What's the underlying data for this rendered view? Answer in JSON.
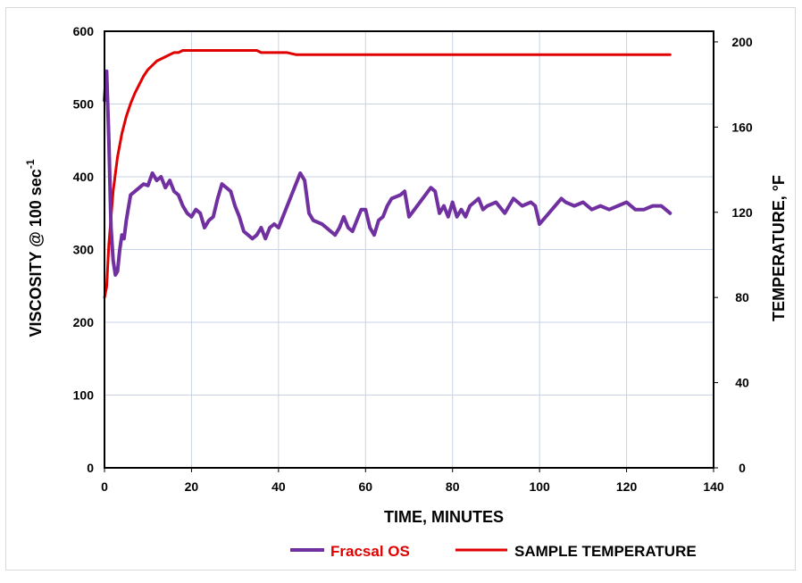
{
  "chart_data": {
    "type": "line",
    "xlabel": "TIME, MINUTES",
    "ylabel_left_main": "VISCOSITY @ 100 sec",
    "ylabel_left_sup": "-1",
    "ylabel_right": "TEMPERATURE,  °F",
    "xlim": [
      0,
      140
    ],
    "ylim_left": [
      0,
      600
    ],
    "ylim_right": [
      0,
      205
    ],
    "x_ticks": [
      "0",
      "20",
      "40",
      "60",
      "80",
      "100",
      "120",
      "140"
    ],
    "y_left_ticks": [
      "0",
      "100",
      "200",
      "300",
      "400",
      "500",
      "600"
    ],
    "y_right_ticks": [
      "0",
      "40",
      "80",
      "120",
      "160",
      "200"
    ],
    "grid": true,
    "legend_position": "bottom",
    "series": [
      {
        "name": "Fracsal OS",
        "axis": "left",
        "color": "#7030a0",
        "label_color": "#e00000",
        "x": [
          0.0,
          0.5,
          1.0,
          1.5,
          2.0,
          2.5,
          3.0,
          3.5,
          4.0,
          4.5,
          5.0,
          6.0,
          7.0,
          8.0,
          9.0,
          10.0,
          11.0,
          12.0,
          13.0,
          14.0,
          15.0,
          16.0,
          17.0,
          18.0,
          19.0,
          20.0,
          21.0,
          22.0,
          23.0,
          24.0,
          25.0,
          26.0,
          27.0,
          28.0,
          29.0,
          30.0,
          31.0,
          32.0,
          33.0,
          34.0,
          35.0,
          36.0,
          37.0,
          38.0,
          39.0,
          40.0,
          45.0,
          46.0,
          47.0,
          48.0,
          50.0,
          52.0,
          53.0,
          54.0,
          55.0,
          56.0,
          57.0,
          58.0,
          59.0,
          60.0,
          61.0,
          62.0,
          63.0,
          64.0,
          65.0,
          66.0,
          68.0,
          69.0,
          70.0,
          75.0,
          76.0,
          77.0,
          78.0,
          79.0,
          80.0,
          81.0,
          82.0,
          83.0,
          84.0,
          85.0,
          86.0,
          87.0,
          88.0,
          90.0,
          92.0,
          94.0,
          96.0,
          98.0,
          99.0,
          100.0,
          105.0,
          106.0,
          108.0,
          110.0,
          112.0,
          114.0,
          116.0,
          118.0,
          120.0,
          122.0,
          124.0,
          126.0,
          128.0,
          129.0,
          130.0
        ],
        "y": [
          505,
          545,
          450,
          330,
          285,
          265,
          270,
          300,
          320,
          315,
          340,
          375,
          380,
          385,
          390,
          388,
          405,
          395,
          400,
          385,
          395,
          380,
          375,
          360,
          350,
          345,
          355,
          350,
          330,
          340,
          345,
          370,
          390,
          385,
          380,
          360,
          345,
          325,
          320,
          315,
          320,
          330,
          315,
          330,
          335,
          330,
          405,
          395,
          350,
          340,
          335,
          325,
          320,
          330,
          345,
          330,
          325,
          340,
          355,
          355,
          330,
          320,
          340,
          345,
          360,
          370,
          375,
          380,
          345,
          385,
          380,
          350,
          360,
          345,
          365,
          345,
          355,
          345,
          360,
          365,
          370,
          355,
          360,
          365,
          350,
          370,
          360,
          365,
          360,
          335,
          370,
          365,
          360,
          365,
          355,
          360,
          355,
          360,
          365,
          355,
          355,
          360,
          360,
          355,
          350
        ]
      },
      {
        "name": "SAMPLE TEMPERATURE",
        "axis": "right",
        "color": "#e00000",
        "label_color": "#000000",
        "x": [
          0,
          0.5,
          1,
          2,
          3,
          4,
          5,
          6,
          7,
          8,
          9,
          10,
          11,
          12,
          13,
          14,
          15,
          16,
          17,
          18,
          20,
          25,
          28,
          32,
          35,
          36,
          42,
          44,
          46,
          130
        ],
        "y": [
          80,
          85,
          105,
          130,
          146,
          157,
          165,
          171,
          176,
          180,
          184,
          187,
          189,
          191,
          192,
          193,
          194,
          195,
          195,
          196,
          196,
          196,
          196,
          196,
          196,
          195,
          195,
          194,
          194,
          194
        ]
      }
    ]
  }
}
